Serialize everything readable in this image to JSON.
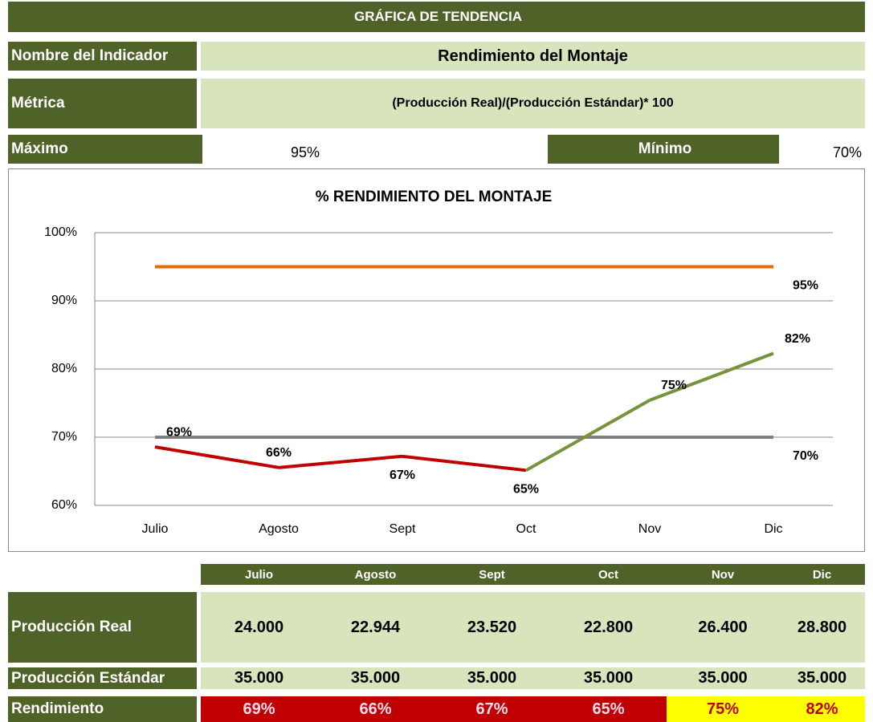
{
  "header": {
    "title": "GRÁFICA DE TENDENCIA",
    "indicator_label": "Nombre del Indicador",
    "indicator": "Rendimiento del Montaje",
    "metric_label": "Métrica",
    "metric": "(Producción Real)/(Producción Estándar)* 100",
    "max_label": "Máximo",
    "max": "95%",
    "min_label": "Mínimo",
    "min": "70%"
  },
  "chart_data": {
    "type": "line",
    "title": "% RENDIMIENTO DEL MONTAJE",
    "categories": [
      "Julio",
      "Agosto",
      "Sept",
      "Oct",
      "Nov",
      "Dic"
    ],
    "series": [
      {
        "color": "#e36c09",
        "values": [
          95,
          95,
          95,
          95,
          95,
          95
        ],
        "value_labels": [
          null,
          null,
          null,
          null,
          null,
          "95%"
        ]
      },
      {
        "color": "#7f7f7f",
        "values": [
          70,
          70,
          70,
          70,
          70,
          70
        ],
        "value_labels": [
          null,
          null,
          null,
          null,
          null,
          "70%"
        ]
      },
      {
        "color": "#c00000",
        "segment_colors": [
          "#c00000",
          "#c00000",
          "#c00000",
          "#77933c",
          "#77933c"
        ],
        "values": [
          68.57,
          65.55,
          67.2,
          65.14,
          75.43,
          82.29
        ],
        "value_labels": [
          "69%",
          "66%",
          "67%",
          "65%",
          "75%",
          "82%"
        ]
      }
    ],
    "ylim": [
      60,
      100
    ],
    "yticks": [
      {
        "value": 60,
        "label": "60%"
      },
      {
        "value": 70,
        "label": "70%"
      },
      {
        "value": 80,
        "label": "80%"
      },
      {
        "value": 90,
        "label": "90%"
      },
      {
        "value": 100,
        "label": "100%"
      }
    ],
    "grid": true
  },
  "table": {
    "columns": [
      "Julio",
      "Agosto",
      "Sept",
      "Oct",
      "Nov",
      "Dic"
    ],
    "rows": [
      [
        "Producción Real",
        "24.000",
        "22.944",
        "23.520",
        "22.800",
        "26.400",
        "28.800"
      ],
      [
        "Producción Estándar",
        "35.000",
        "35.000",
        "35.000",
        "35.000",
        "35.000",
        "35.000"
      ],
      [
        "Rendimiento",
        "69%",
        "66%",
        "67%",
        "65%",
        "75%",
        "82%"
      ]
    ],
    "highlight": [
      "#c00000",
      "#c00000",
      "#c00000",
      "#c00000",
      "#ffff00",
      "#ffff00"
    ]
  }
}
